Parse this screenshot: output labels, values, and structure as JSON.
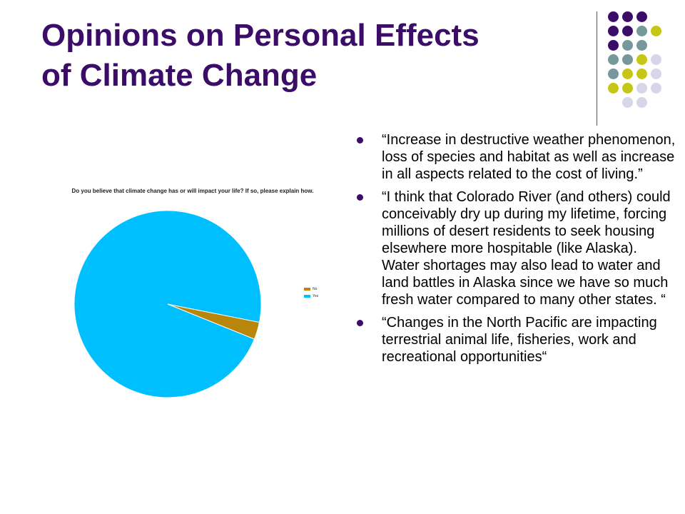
{
  "slide": {
    "title_line1": "Opinions on Personal Effects",
    "title_line2": "of Climate Change",
    "colors": {
      "title": "#3b0c68",
      "bullet_marker": "#3b0c68",
      "deco_dots": [
        "#3b0c68",
        "#76989c",
        "#c6c617",
        "#d6d6e8"
      ]
    }
  },
  "chart_data": {
    "type": "pie",
    "title": "Do you believe that climate change has or will impact your life? If so, please explain how.",
    "categories": [
      "No",
      "Yes"
    ],
    "values": [
      3,
      97
    ],
    "colors": [
      "#b8860b",
      "#00bfff"
    ],
    "legend": "right"
  },
  "bullets": [
    "“Increase in destructive weather phenomenon, loss of species and habitat as well as increase in all aspects related to the cost of living.”",
    "“I think that Colorado River (and others) could conceivably dry up during my lifetime, forcing millions of desert residents to seek housing elsewhere more hospitable (like Alaska). Water shortages may also lead to water and land battles in Alaska since we have so much fresh water compared to many other states. “",
    "“Changes in the North Pacific are impacting terrestrial animal life, fisheries, work and recreational opportunities“"
  ]
}
